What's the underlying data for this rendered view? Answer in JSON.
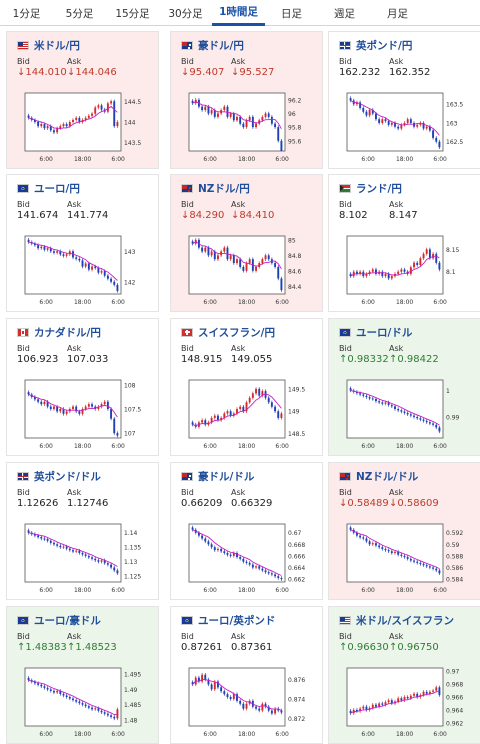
{
  "tabs": [
    {
      "label": "1分足",
      "active": false
    },
    {
      "label": "5分足",
      "active": false
    },
    {
      "label": "15分足",
      "active": false
    },
    {
      "label": "30分足",
      "active": false
    },
    {
      "label": "1時間足",
      "active": true
    },
    {
      "label": "日足",
      "active": false
    },
    {
      "label": "週足",
      "active": false
    },
    {
      "label": "月足",
      "active": false
    }
  ],
  "labels": {
    "bid": "Bid",
    "ask": "Ask"
  },
  "x_ticks": [
    "6:00",
    "18:00",
    "6:00"
  ],
  "colors": {
    "up_candle": "#d22a2a",
    "down_candle": "#1f3fb6",
    "moving_average": "#c61fc6",
    "card_down": "#fcebea",
    "card_up": "#ecf5ea",
    "link": "#1f4e9a"
  },
  "pairs": [
    {
      "name": "米ドル/円",
      "flag": "us",
      "trend": "down",
      "bid": "144.010",
      "ask": "144.046",
      "arrow": "↓",
      "y_ticks": [
        "144.5",
        "144",
        "143.5"
      ],
      "ylim": [
        143.3,
        144.7
      ],
      "chart_data": {
        "type": "candlestick",
        "ylim": [
          143.3,
          144.7
        ],
        "closes": [
          144.1,
          144.05,
          144.0,
          143.9,
          143.95,
          143.85,
          143.9,
          143.8,
          143.75,
          143.85,
          143.9,
          143.95,
          143.9,
          144.0,
          144.05,
          144.1,
          144.0,
          144.05,
          144.1,
          144.15,
          144.2,
          144.35,
          144.4,
          144.3,
          144.25,
          144.45,
          144.5,
          143.9,
          144.0
        ]
      }
    },
    {
      "name": "豪ドル/円",
      "flag": "au",
      "trend": "down",
      "bid": "95.407",
      "ask": "95.527",
      "arrow": "↓",
      "y_ticks": [
        "96.2",
        "96",
        "95.8",
        "95.6"
      ],
      "ylim": [
        95.45,
        96.3
      ],
      "chart_data": {
        "type": "candlestick",
        "ylim": [
          95.45,
          96.3
        ],
        "closes": [
          96.15,
          96.2,
          96.1,
          96.05,
          96.1,
          96.0,
          96.05,
          95.95,
          96.0,
          96.05,
          96.1,
          95.95,
          96.0,
          95.9,
          95.95,
          95.85,
          95.8,
          95.9,
          95.95,
          95.8,
          95.85,
          95.9,
          95.95,
          96.0,
          95.95,
          95.85,
          95.8,
          95.6,
          95.45
        ]
      }
    },
    {
      "name": "英ポンド/円",
      "flag": "gb",
      "trend": "neutral",
      "bid": "162.232",
      "ask": "162.352",
      "arrow": "",
      "y_ticks": [
        "163.5",
        "163",
        "162.5"
      ],
      "ylim": [
        162.25,
        163.8
      ],
      "chart_data": {
        "type": "candlestick",
        "ylim": [
          162.25,
          163.8
        ],
        "closes": [
          163.6,
          163.5,
          163.55,
          163.4,
          163.3,
          163.2,
          163.35,
          163.25,
          163.1,
          163.0,
          163.1,
          163.05,
          162.95,
          163.0,
          162.9,
          162.85,
          162.95,
          163.0,
          163.1,
          163.0,
          162.9,
          162.95,
          163.0,
          162.85,
          162.9,
          162.8,
          162.6,
          162.5,
          162.35
        ]
      }
    },
    {
      "name": "ユーロ/円",
      "flag": "eu",
      "trend": "neutral",
      "bid": "141.674",
      "ask": "141.774",
      "arrow": "",
      "y_ticks": [
        "143",
        "142"
      ],
      "ylim": [
        141.6,
        143.5
      ],
      "chart_data": {
        "type": "candlestick",
        "ylim": [
          141.6,
          143.5
        ],
        "closes": [
          143.3,
          143.25,
          143.2,
          143.1,
          143.15,
          143.05,
          143.1,
          143.0,
          142.95,
          143.0,
          142.9,
          142.85,
          142.9,
          143.0,
          142.8,
          142.75,
          142.7,
          142.5,
          142.6,
          142.4,
          142.5,
          142.45,
          142.3,
          142.35,
          142.2,
          142.1,
          142.0,
          141.9,
          141.7
        ]
      }
    },
    {
      "name": "NZドル/円",
      "flag": "nz",
      "trend": "down",
      "bid": "84.290",
      "ask": "84.410",
      "arrow": "↓",
      "y_ticks": [
        "85",
        "84.8",
        "84.6",
        "84.4"
      ],
      "ylim": [
        84.3,
        85.05
      ],
      "chart_data": {
        "type": "candlestick",
        "ylim": [
          84.3,
          85.05
        ],
        "closes": [
          84.95,
          85.0,
          84.9,
          84.85,
          84.9,
          84.8,
          84.85,
          84.75,
          84.8,
          84.85,
          84.9,
          84.75,
          84.8,
          84.7,
          84.75,
          84.65,
          84.6,
          84.7,
          84.75,
          84.6,
          84.65,
          84.7,
          84.75,
          84.8,
          84.75,
          84.7,
          84.65,
          84.5,
          84.35
        ]
      }
    },
    {
      "name": "ランド/円",
      "flag": "za",
      "trend": "neutral",
      "bid": "8.102",
      "ask": "8.147",
      "arrow": "",
      "y_ticks": [
        "8.15",
        "8.1"
      ],
      "ylim": [
        8.05,
        8.18
      ],
      "chart_data": {
        "type": "candlestick",
        "ylim": [
          8.05,
          8.18
        ],
        "closes": [
          8.09,
          8.1,
          8.095,
          8.1,
          8.09,
          8.095,
          8.1,
          8.105,
          8.095,
          8.1,
          8.09,
          8.095,
          8.085,
          8.09,
          8.095,
          8.1,
          8.105,
          8.1,
          8.095,
          8.11,
          8.12,
          8.115,
          8.13,
          8.14,
          8.15,
          8.13,
          8.14,
          8.12,
          8.105
        ]
      }
    },
    {
      "name": "カナダドル/円",
      "flag": "ca",
      "trend": "neutral",
      "bid": "106.923",
      "ask": "107.033",
      "arrow": "",
      "y_ticks": [
        "108",
        "107.5",
        "107"
      ],
      "ylim": [
        106.9,
        108.1
      ],
      "chart_data": {
        "type": "candlestick",
        "ylim": [
          106.9,
          108.1
        ],
        "closes": [
          107.8,
          107.75,
          107.7,
          107.65,
          107.6,
          107.65,
          107.55,
          107.5,
          107.55,
          107.45,
          107.5,
          107.4,
          107.45,
          107.5,
          107.55,
          107.45,
          107.4,
          107.5,
          107.55,
          107.6,
          107.55,
          107.5,
          107.55,
          107.6,
          107.65,
          107.5,
          107.3,
          107.0,
          106.95
        ]
      }
    },
    {
      "name": "スイスフラン/円",
      "flag": "ch",
      "trend": "neutral",
      "bid": "148.915",
      "ask": "149.055",
      "arrow": "",
      "y_ticks": [
        "149.5",
        "149",
        "148.5"
      ],
      "ylim": [
        148.4,
        149.7
      ],
      "chart_data": {
        "type": "candlestick",
        "ylim": [
          148.4,
          149.7
        ],
        "closes": [
          148.7,
          148.65,
          148.75,
          148.8,
          148.7,
          148.75,
          148.85,
          148.9,
          148.8,
          148.85,
          148.95,
          149.0,
          148.9,
          148.95,
          149.05,
          149.1,
          149.0,
          149.2,
          149.3,
          149.4,
          149.5,
          149.35,
          149.45,
          149.3,
          149.2,
          149.1,
          149.0,
          148.85,
          148.95
        ]
      }
    },
    {
      "name": "ユーロ/ドル",
      "flag": "eu",
      "trend": "up",
      "bid": "0.98332",
      "ask": "0.98422",
      "arrow": "↑",
      "y_ticks": [
        "1",
        "0.99"
      ],
      "ylim": [
        0.982,
        1.004
      ],
      "chart_data": {
        "type": "candlestick",
        "ylim": [
          0.982,
          1.004
        ],
        "closes": [
          1.0,
          0.9995,
          0.999,
          0.9985,
          0.998,
          0.9975,
          0.997,
          0.9968,
          0.996,
          0.9955,
          0.995,
          0.9955,
          0.9945,
          0.994,
          0.993,
          0.9925,
          0.992,
          0.9915,
          0.991,
          0.9905,
          0.99,
          0.9895,
          0.989,
          0.9885,
          0.988,
          0.9875,
          0.987,
          0.986,
          0.9845
        ]
      }
    },
    {
      "name": "英ポンド/ドル",
      "flag": "gb",
      "trend": "neutral",
      "bid": "1.12626",
      "ask": "1.12746",
      "arrow": "",
      "y_ticks": [
        "1.14",
        "1.135",
        "1.13",
        "1.125"
      ],
      "ylim": [
        1.123,
        1.143
      ],
      "chart_data": {
        "type": "candlestick",
        "ylim": [
          1.123,
          1.143
        ],
        "closes": [
          1.14,
          1.1395,
          1.139,
          1.1385,
          1.138,
          1.1378,
          1.1372,
          1.1365,
          1.136,
          1.1355,
          1.135,
          1.1352,
          1.1345,
          1.134,
          1.1335,
          1.1338,
          1.133,
          1.1325,
          1.132,
          1.1315,
          1.131,
          1.1305,
          1.13,
          1.1305,
          1.1295,
          1.129,
          1.128,
          1.127,
          1.126
        ]
      }
    },
    {
      "name": "豪ドル/ドル",
      "flag": "au",
      "trend": "neutral",
      "bid": "0.66209",
      "ask": "0.66329",
      "arrow": "",
      "y_ticks": [
        "0.67",
        "0.668",
        "0.666",
        "0.664",
        "0.662"
      ],
      "ylim": [
        0.6615,
        0.6715
      ],
      "chart_data": {
        "type": "candlestick",
        "ylim": [
          0.6615,
          0.6715
        ],
        "closes": [
          0.6705,
          0.67,
          0.6695,
          0.669,
          0.6685,
          0.668,
          0.6675,
          0.667,
          0.6672,
          0.6668,
          0.6665,
          0.6662,
          0.666,
          0.6665,
          0.6658,
          0.6655,
          0.665,
          0.6648,
          0.6645,
          0.664,
          0.6642,
          0.6638,
          0.6635,
          0.6632,
          0.663,
          0.6628,
          0.6625,
          0.6622,
          0.662
        ]
      }
    },
    {
      "name": "NZドル/ドル",
      "flag": "nz",
      "trend": "down",
      "bid": "0.58489",
      "ask": "0.58609",
      "arrow": "↓",
      "y_ticks": [
        "0.592",
        "0.59",
        "0.588",
        "0.586",
        "0.584"
      ],
      "ylim": [
        0.5835,
        0.5935
      ],
      "chart_data": {
        "type": "candlestick",
        "ylim": [
          0.5835,
          0.5935
        ],
        "closes": [
          0.5925,
          0.592,
          0.5915,
          0.5912,
          0.591,
          0.5905,
          0.59,
          0.5902,
          0.5898,
          0.5895,
          0.5892,
          0.589,
          0.5888,
          0.5885,
          0.5887,
          0.5882,
          0.588,
          0.5878,
          0.5875,
          0.5872,
          0.587,
          0.5868,
          0.5866,
          0.5864,
          0.5862,
          0.586,
          0.5858,
          0.5855,
          0.585
        ]
      }
    },
    {
      "name": "ユーロ/豪ドル",
      "flag": "eu",
      "trend": "up",
      "bid": "1.48383",
      "ask": "1.48523",
      "arrow": "↑",
      "y_ticks": [
        "1.495",
        "1.49",
        "1.485",
        "1.48"
      ],
      "ylim": [
        1.478,
        1.497
      ],
      "chart_data": {
        "type": "candlestick",
        "ylim": [
          1.478,
          1.497
        ],
        "closes": [
          1.493,
          1.4925,
          1.492,
          1.4915,
          1.491,
          1.4905,
          1.49,
          1.4895,
          1.489,
          1.4895,
          1.4885,
          1.488,
          1.4875,
          1.487,
          1.4865,
          1.486,
          1.4855,
          1.485,
          1.4845,
          1.484,
          1.4835,
          1.4838,
          1.483,
          1.4825,
          1.482,
          1.4815,
          1.481,
          1.4805,
          1.4835
        ]
      }
    },
    {
      "name": "ユーロ/英ポンド",
      "flag": "eu",
      "trend": "neutral",
      "bid": "0.87261",
      "ask": "0.87361",
      "arrow": "",
      "y_ticks": [
        "0.876",
        "0.874",
        "0.872"
      ],
      "ylim": [
        0.8712,
        0.8772
      ],
      "chart_data": {
        "type": "candlestick",
        "ylim": [
          0.8712,
          0.8772
        ],
        "closes": [
          0.8755,
          0.8762,
          0.8758,
          0.8765,
          0.876,
          0.8755,
          0.875,
          0.8758,
          0.8752,
          0.8748,
          0.8745,
          0.8742,
          0.874,
          0.8745,
          0.8738,
          0.8735,
          0.873,
          0.8735,
          0.8738,
          0.8732,
          0.873,
          0.8728,
          0.8735,
          0.8732,
          0.8728,
          0.8725,
          0.873,
          0.8728,
          0.8726
        ]
      }
    },
    {
      "name": "米ドル/スイスフラン",
      "flag": "us",
      "trend": "up",
      "bid": "0.96630",
      "ask": "0.96750",
      "arrow": "↑",
      "y_ticks": [
        "0.97",
        "0.968",
        "0.966",
        "0.964",
        "0.962"
      ],
      "ylim": [
        0.9615,
        0.9705
      ],
      "chart_data": {
        "type": "candlestick",
        "ylim": [
          0.9615,
          0.9705
        ],
        "closes": [
          0.9635,
          0.964,
          0.9638,
          0.9642,
          0.9645,
          0.964,
          0.9643,
          0.9648,
          0.9645,
          0.965,
          0.9648,
          0.9652,
          0.9655,
          0.965,
          0.9653,
          0.9658,
          0.9655,
          0.966,
          0.9658,
          0.9662,
          0.9665,
          0.966,
          0.9663,
          0.9668,
          0.9665,
          0.9668,
          0.967,
          0.9675,
          0.9663
        ]
      }
    }
  ]
}
